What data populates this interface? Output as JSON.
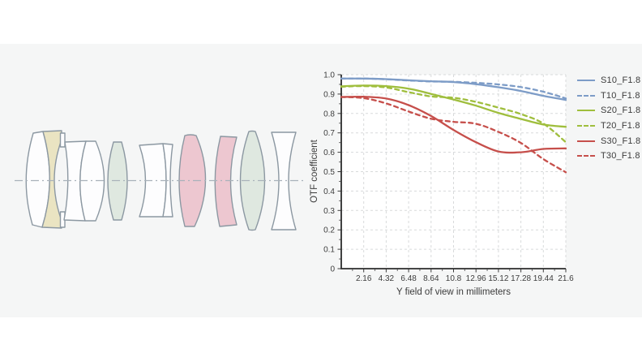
{
  "page": {
    "background": "#ffffff",
    "band_background": "#f5f6f6"
  },
  "lens_diagram": {
    "description": "optical lens cross-section with 11 elements on a dash-dot optical axis",
    "element_count": 11,
    "colors": {
      "outline": "#8c98a2",
      "white": "#fdfdfe",
      "cream": "#eae4c2",
      "pink": "#edc7d0",
      "green": "#dfe8e0",
      "axis": "#a9b2ba"
    }
  },
  "chart_data": {
    "type": "line",
    "title": "",
    "xlabel": "Y field of view in millimeters",
    "ylabel": "OTF coefficient",
    "xlim": [
      0,
      21.6
    ],
    "ylim": [
      0,
      1.0
    ],
    "grid": true,
    "legend_position": "right",
    "x": [
      0,
      2.16,
      4.32,
      6.48,
      8.64,
      10.8,
      12.96,
      15.12,
      17.28,
      19.44,
      21.6
    ],
    "x_tick_values": [
      2.16,
      4.32,
      6.48,
      8.64,
      10.8,
      12.96,
      15.12,
      17.28,
      19.44,
      21.6
    ],
    "x_tick_labels": [
      "2.16",
      "4.32",
      "6.48",
      "8.64",
      "10.8",
      "12.96",
      "15.12",
      "17.28",
      "19.44",
      "21.6"
    ],
    "y_tick_values": [
      0,
      0.1,
      0.2,
      0.3,
      0.4,
      0.5,
      0.6,
      0.7,
      0.8,
      0.9,
      1.0
    ],
    "y_tick_labels": [
      "0",
      "0.1",
      "0.2",
      "0.3",
      "0.4",
      "0.5",
      "0.6",
      "0.7",
      "0.8",
      "0.9",
      "1.0"
    ],
    "series": [
      {
        "name": "S10_F1.8",
        "color": "#7d9cc7",
        "style": "solid",
        "values": [
          0.98,
          0.98,
          0.977,
          0.971,
          0.966,
          0.962,
          0.951,
          0.935,
          0.916,
          0.891,
          0.87
        ]
      },
      {
        "name": "T10_F1.8",
        "color": "#7d9cc7",
        "style": "dashed",
        "values": [
          0.98,
          0.98,
          0.976,
          0.97,
          0.965,
          0.963,
          0.958,
          0.95,
          0.936,
          0.912,
          0.878
        ]
      },
      {
        "name": "S20_F1.8",
        "color": "#9fbe3d",
        "style": "solid",
        "values": [
          0.94,
          0.944,
          0.941,
          0.928,
          0.901,
          0.872,
          0.84,
          0.803,
          0.772,
          0.743,
          0.731
        ]
      },
      {
        "name": "T20_F1.8",
        "color": "#9fbe3d",
        "style": "dashed",
        "values": [
          0.938,
          0.941,
          0.934,
          0.91,
          0.888,
          0.881,
          0.86,
          0.83,
          0.797,
          0.748,
          0.652
        ]
      },
      {
        "name": "S30_F1.8",
        "color": "#c64f4b",
        "style": "solid",
        "values": [
          0.885,
          0.886,
          0.877,
          0.843,
          0.787,
          0.715,
          0.652,
          0.604,
          0.6,
          0.617,
          0.62
        ]
      },
      {
        "name": "T30_F1.8",
        "color": "#c64f4b",
        "style": "dashed",
        "values": [
          0.885,
          0.879,
          0.852,
          0.81,
          0.773,
          0.757,
          0.747,
          0.705,
          0.648,
          0.565,
          0.497
        ]
      }
    ]
  }
}
